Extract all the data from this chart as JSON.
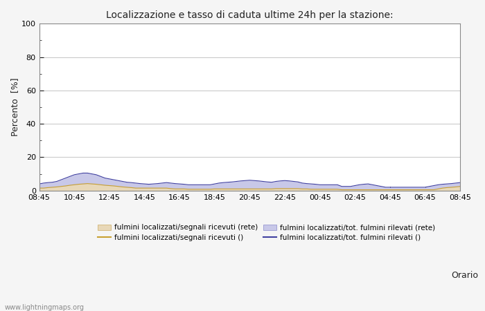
{
  "title": "Localizzazione e tasso di caduta ultime 24h per la stazione:",
  "xlabel": "Orario",
  "ylabel": "Percento  [%]",
  "ylim": [
    0,
    100
  ],
  "yticks": [
    0,
    20,
    40,
    60,
    80,
    100
  ],
  "yticks_minor": [
    10,
    30,
    50,
    70,
    90
  ],
  "x_labels": [
    "08:45",
    "10:45",
    "12:45",
    "14:45",
    "16:45",
    "18:45",
    "20:45",
    "22:45",
    "00:45",
    "02:45",
    "04:45",
    "06:45",
    "08:45"
  ],
  "background_color": "#f5f5f5",
  "plot_bg_color": "#ffffff",
  "fill_color_1": "#e8d8b8",
  "fill_color_2": "#c8c8e8",
  "line_color_1": "#c8a030",
  "line_color_2": "#4040a0",
  "watermark": "www.lightningmaps.org",
  "legend": [
    "fulmini localizzati/segnali ricevuti (rete)",
    "fulmini localizzati/segnali ricevuti ()",
    "fulmini localizzati/tot. fulmini rilevati (rete)",
    "fulmini localizzati/tot. fulmini rilevati ()"
  ],
  "n_points": 97,
  "series1": [
    1.5,
    1.5,
    1.8,
    2.0,
    2.2,
    2.5,
    2.8,
    3.2,
    3.5,
    3.8,
    4.0,
    4.2,
    4.0,
    3.8,
    3.5,
    3.2,
    3.0,
    2.8,
    2.5,
    2.2,
    2.0,
    1.8,
    1.5,
    1.5,
    1.5,
    1.5,
    1.5,
    1.5,
    1.5,
    1.5,
    1.2,
    1.0,
    1.0,
    1.0,
    0.8,
    0.8,
    0.8,
    0.8,
    0.8,
    0.8,
    1.0,
    1.0,
    1.0,
    1.0,
    1.0,
    1.0,
    1.0,
    1.0,
    1.0,
    1.0,
    1.0,
    1.0,
    1.0,
    1.0,
    1.2,
    1.2,
    1.2,
    1.2,
    1.2,
    1.2,
    1.0,
    1.0,
    0.8,
    0.8,
    0.8,
    0.8,
    0.8,
    0.8,
    0.8,
    0.5,
    0.5,
    0.5,
    0.5,
    0.5,
    0.5,
    0.5,
    0.5,
    0.5,
    0.5,
    0.5,
    0.5,
    0.5,
    0.5,
    0.5,
    0.5,
    0.5,
    0.5,
    0.5,
    0.5,
    0.5,
    0.5,
    1.0,
    1.5,
    1.8,
    2.0,
    2.2,
    2.5
  ],
  "series2": [
    4.0,
    4.5,
    4.8,
    5.0,
    5.5,
    6.5,
    7.5,
    8.5,
    9.5,
    10.0,
    10.5,
    10.5,
    10.0,
    9.5,
    8.5,
    7.5,
    7.0,
    6.5,
    6.0,
    5.5,
    5.0,
    4.8,
    4.5,
    4.2,
    4.0,
    3.8,
    4.0,
    4.2,
    4.5,
    4.8,
    4.5,
    4.2,
    4.0,
    3.8,
    3.5,
    3.5,
    3.5,
    3.5,
    3.5,
    3.5,
    4.0,
    4.5,
    4.8,
    5.0,
    5.2,
    5.5,
    5.8,
    6.0,
    6.2,
    6.0,
    5.8,
    5.5,
    5.2,
    5.0,
    5.5,
    5.8,
    6.0,
    5.8,
    5.5,
    5.2,
    4.5,
    4.2,
    4.0,
    3.8,
    3.5,
    3.5,
    3.5,
    3.5,
    3.5,
    2.5,
    2.5,
    2.5,
    3.0,
    3.5,
    3.8,
    4.0,
    3.5,
    3.0,
    2.5,
    2.0,
    2.0,
    2.0,
    2.0,
    2.0,
    2.0,
    2.0,
    2.0,
    2.0,
    2.0,
    2.5,
    3.0,
    3.5,
    3.8,
    4.0,
    4.2,
    4.5,
    4.8
  ]
}
